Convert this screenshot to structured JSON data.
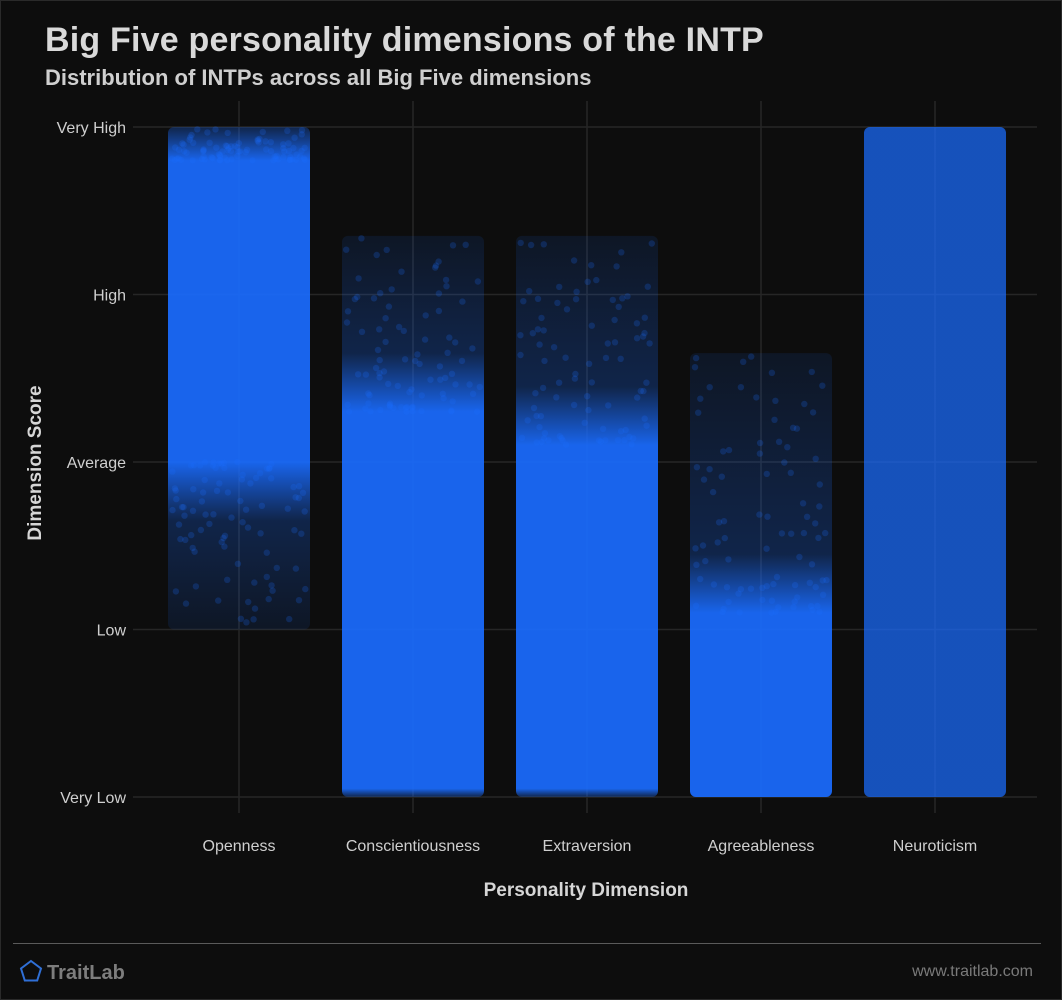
{
  "header": {
    "title": "Big Five personality dimensions of the INTP",
    "subtitle": "Distribution of INTPs across all Big Five dimensions"
  },
  "footer": {
    "brand": "TraitLab",
    "brand_icon": "pentagon-logo-icon",
    "url": "www.traitlab.com"
  },
  "colors": {
    "point": "#1a6cff",
    "background": "#0d0d0d",
    "grid": "#262626",
    "logo": "#2f6fd6"
  },
  "chart_data": {
    "type": "scatter",
    "xlabel": "Personality Dimension",
    "ylabel": "Dimension Score",
    "categories": [
      "Openness",
      "Conscientiousness",
      "Extraversion",
      "Agreeableness",
      "Neuroticism"
    ],
    "y_tick_labels": [
      "Very Low",
      "Low",
      "Average",
      "High",
      "Very High"
    ],
    "ylim": [
      1,
      5
    ],
    "grid": true,
    "jittered": true,
    "series": [
      {
        "category": "Openness",
        "min": 2.0,
        "max": 5.0,
        "dense_min": 3.0,
        "dense_max": 4.8
      },
      {
        "category": "Conscientiousness",
        "min": 1.0,
        "max": 4.35,
        "dense_min": 1.05,
        "dense_max": 3.3
      },
      {
        "category": "Extraversion",
        "min": 1.0,
        "max": 4.35,
        "dense_min": 1.05,
        "dense_max": 3.1
      },
      {
        "category": "Agreeableness",
        "min": 1.0,
        "max": 3.65,
        "dense_min": 1.0,
        "dense_max": 2.1
      },
      {
        "category": "Neuroticism",
        "min": 1.0,
        "max": 5.0,
        "dense_min": 1.0,
        "dense_max": 5.0
      }
    ]
  }
}
